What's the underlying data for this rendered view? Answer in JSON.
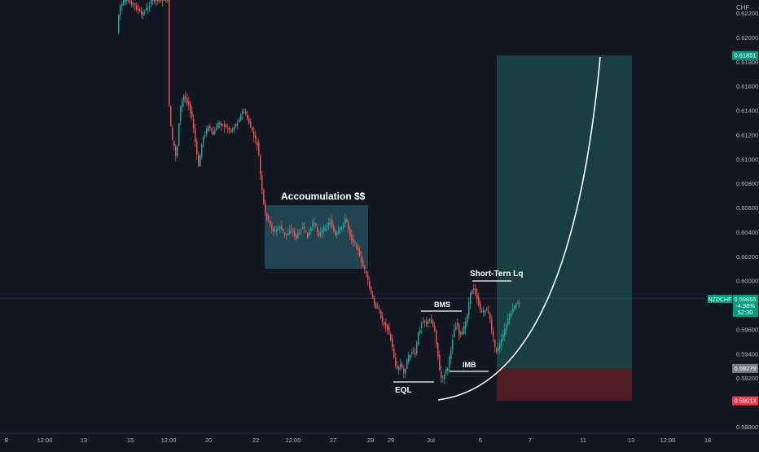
{
  "chart_data": {
    "type": "candlestick",
    "symbol": "NZDCHF",
    "currency_label": "CHF",
    "y_ticks": [
      "0.62200",
      "0.62000",
      "0.61800",
      "0.61600",
      "0.61400",
      "0.61200",
      "0.61000",
      "0.60800",
      "0.60600",
      "0.60400",
      "0.60200",
      "0.60000",
      "0.59600",
      "0.59400",
      "0.59200",
      "0.58800"
    ],
    "ylim": [
      0.5875,
      0.6231
    ],
    "x_ticks": [
      "8",
      "12:00",
      "13",
      "15",
      "12:00",
      "20",
      "22",
      "12:00",
      "27",
      "28",
      "29",
      "Jul",
      "5",
      "7",
      "11",
      "13",
      "12:00",
      "18"
    ],
    "annotations": {
      "accumulation": "Accoumulation $$",
      "bms": "BMS",
      "short_term_lq": "Short-Tern Lq",
      "imb": "IMB",
      "eql": "EQL"
    },
    "price_badges": {
      "target": "0.61851",
      "current_price": "0.59855",
      "current_change": "-4.98%",
      "countdown": "52:30",
      "entry": "0.59279",
      "stop": "0.59013"
    },
    "position": {
      "entry": 0.59279,
      "target": 0.61851,
      "stop": 0.59013
    },
    "grid": false,
    "colors": {
      "background": "#131722",
      "up": "#26a69a",
      "down": "#ef5350",
      "profit_zone": "#1c4a4a",
      "loss_zone": "#5a1e24",
      "accumulation_box": "#2a6470",
      "curve": "#ffffff",
      "axis_text": "#b2b5be",
      "badge_green": "#089981",
      "badge_red": "#f23645",
      "badge_gray": "#787b86"
    }
  }
}
